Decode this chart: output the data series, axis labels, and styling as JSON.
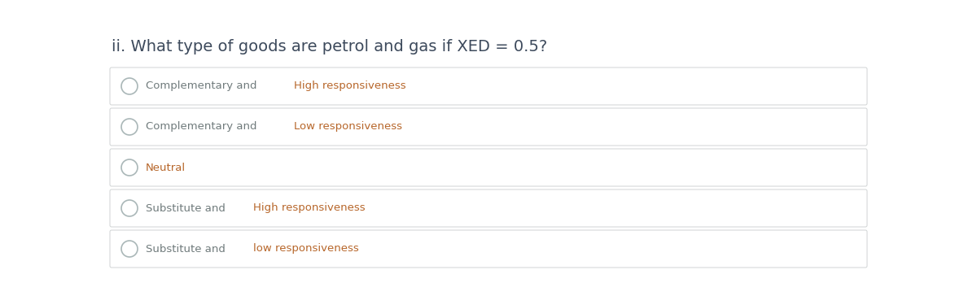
{
  "title": "ii. What type of goods are petrol and gas if XED = 0.5?",
  "title_color": "#3d4a5c",
  "options": [
    {
      "plain": "Complementary and ",
      "highlight": "High responsiveness"
    },
    {
      "plain": "Complementary and ",
      "highlight": "Low responsiveness"
    },
    {
      "plain": "",
      "highlight": "Neutral"
    },
    {
      "plain": "Substitute and ",
      "highlight": "High responsiveness"
    },
    {
      "plain": "Substitute and ",
      "highlight": "low responsiveness"
    }
  ],
  "bg_color": "#ffffff",
  "box_bg": "#ffffff",
  "box_border": "#d0d3d4",
  "plain_color": "#707b7c",
  "highlight_color": "#b7662a",
  "circle_edge_color": "#aab7b8",
  "title_fontsize": 14,
  "option_fontsize": 9.5,
  "figsize": [
    12.0,
    3.64
  ],
  "dpi": 100
}
